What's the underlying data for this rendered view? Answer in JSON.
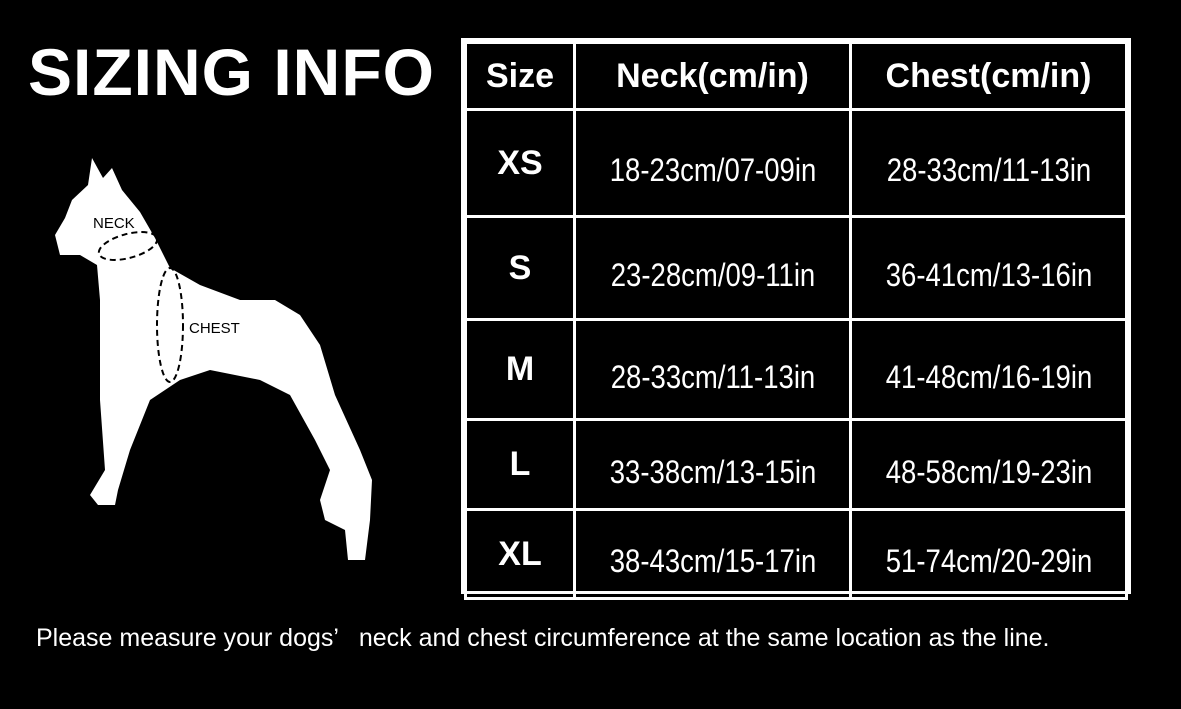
{
  "title": "SIZING INFO",
  "diagram": {
    "neck_label": "NECK",
    "chest_label": "CHEST"
  },
  "table": {
    "headers": [
      "Size",
      "Neck(cm/in)",
      "Chest(cm/in)"
    ],
    "rows": [
      {
        "size": "XS",
        "neck": "18-23cm/07-09in",
        "chest": "28-33cm/11-13in"
      },
      {
        "size": "S",
        "neck": "23-28cm/09-11in",
        "chest": "36-41cm/13-16in"
      },
      {
        "size": "M",
        "neck": "28-33cm/11-13in",
        "chest": "41-48cm/16-19in"
      },
      {
        "size": "L",
        "neck": "33-38cm/13-15in",
        "chest": "48-58cm/19-23in"
      },
      {
        "size": "XL",
        "neck": "38-43cm/15-17in",
        "chest": "51-74cm/20-29in"
      }
    ]
  },
  "note": "Please measure your dogs’   neck and chest circumference at the same location as the line."
}
